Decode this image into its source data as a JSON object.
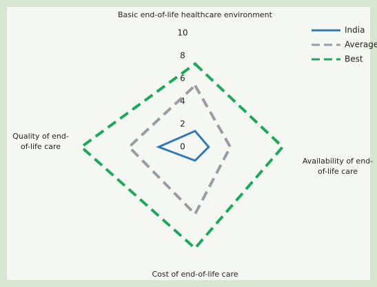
{
  "chart_data": {
    "type": "radar",
    "categories": [
      "Basic end-of-life healthcare environment",
      "Availability of end-of-life care",
      "Cost of end-of-life care",
      "Quality of end-of-life care"
    ],
    "series": [
      {
        "name": "India",
        "color": "#2e7bb4",
        "dash": "solid",
        "values": [
          1.4,
          1.2,
          1.2,
          3.2
        ]
      },
      {
        "name": "Average",
        "color": "#999ca3",
        "dash": "dashed",
        "values": [
          5.4,
          3.1,
          5.9,
          5.8
        ]
      },
      {
        "name": "Best",
        "color": "#1aa85a",
        "dash": "dashed",
        "values": [
          7.3,
          7.7,
          8.9,
          10
        ]
      }
    ],
    "rlim": [
      0,
      10
    ],
    "rticks": [
      0,
      2,
      4,
      6,
      8,
      10
    ],
    "legend": "top-right"
  }
}
